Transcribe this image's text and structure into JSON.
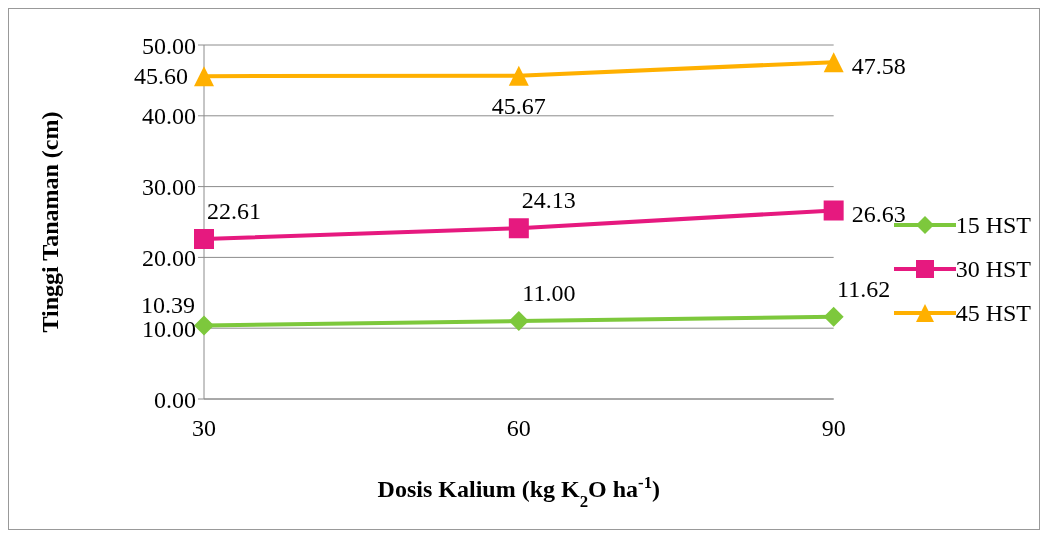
{
  "chart_data": {
    "type": "line",
    "xlabel": "Dosis Kalium (kg K$_{2}$O ha$^{-1}$)",
    "ylabel": "Tinggi Tanaman (cm)",
    "categories": [
      "30",
      "60",
      "90"
    ],
    "series": [
      {
        "name": "15 HST",
        "color": "#7dc83c",
        "marker": "diamond",
        "values": [
          10.39,
          11.0,
          11.62
        ],
        "value_labels": [
          "10.39",
          "11.00",
          "11.62"
        ]
      },
      {
        "name": "30 HST",
        "color": "#e6197f",
        "marker": "square",
        "values": [
          22.61,
          24.13,
          26.63
        ],
        "value_labels": [
          "22.61",
          "24.13",
          "26.63"
        ]
      },
      {
        "name": "45 HST",
        "color": "#ffb000",
        "marker": "triangle",
        "values": [
          45.6,
          45.67,
          47.58
        ],
        "value_labels": [
          "45.60",
          "45.67",
          "47.58"
        ]
      }
    ],
    "ylim": [
      0,
      50
    ],
    "yticks": [
      {
        "value": 0,
        "label": "0.00"
      },
      {
        "value": 10,
        "label": "10.00"
      },
      {
        "value": 20,
        "label": "20.00"
      },
      {
        "value": 30,
        "label": "30.00"
      },
      {
        "value": 40,
        "label": "40.00"
      },
      {
        "value": 50,
        "label": "50.00"
      }
    ],
    "grid": "y",
    "legend": "right",
    "line_style": "solid"
  }
}
